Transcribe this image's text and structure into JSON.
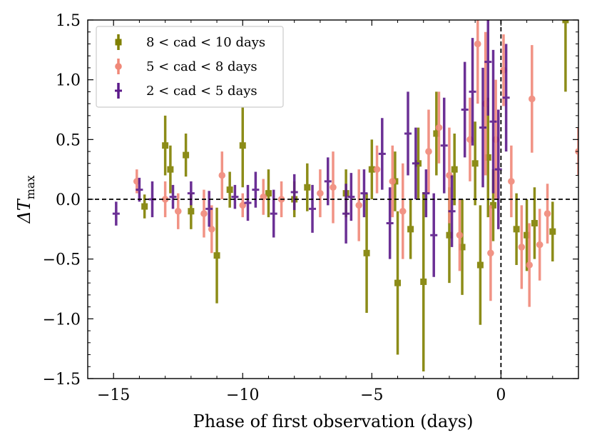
{
  "chart_data": {
    "type": "scatter",
    "xlabel": "Phase of first observation (days)",
    "ylabel": "ΔT",
    "ylabel_sub": "max",
    "xlim": [
      -16,
      3
    ],
    "ylim": [
      -1.5,
      1.5
    ],
    "x_ticks": [
      -15,
      -10,
      -5,
      0
    ],
    "x_tick_labels": [
      "−15",
      "−10",
      "−5",
      "0"
    ],
    "y_ticks": [
      -1.5,
      -1.0,
      -0.5,
      0.0,
      0.5,
      1.0,
      1.5
    ],
    "y_tick_labels": [
      "−1.5",
      "−1.0",
      "−0.5",
      "0.0",
      "0.5",
      "1.0",
      "1.5"
    ],
    "reference_lines": {
      "horizontal_y": 0,
      "vertical_x": 0,
      "style": "dashed"
    },
    "legend": {
      "placement": "top-left"
    },
    "series": [
      {
        "name": "8 < cad < 10 days",
        "marker": "square",
        "color": "#808000",
        "points": [
          [
            -13.0,
            0.45,
            0.25
          ],
          [
            -12.8,
            0.25,
            0.2
          ],
          [
            -12.2,
            0.37,
            0.18
          ],
          [
            -11.0,
            -0.47,
            0.4
          ],
          [
            -10.0,
            0.45,
            0.35
          ],
          [
            -10.5,
            0.08,
            0.15
          ],
          [
            -13.8,
            -0.06,
            0.1
          ],
          [
            -9.0,
            0.05,
            0.2
          ],
          [
            -7.5,
            0.1,
            0.2
          ],
          [
            -5.2,
            -0.45,
            0.5
          ],
          [
            -5.0,
            0.25,
            0.25
          ],
          [
            -4.1,
            0.15,
            0.25
          ],
          [
            -4.0,
            -0.7,
            0.6
          ],
          [
            -3.5,
            -0.25,
            0.25
          ],
          [
            -3.2,
            0.3,
            0.3
          ],
          [
            -3.0,
            -0.69,
            0.75
          ],
          [
            -2.5,
            0.55,
            0.35
          ],
          [
            -2.0,
            -0.3,
            0.4
          ],
          [
            -1.8,
            0.25,
            0.3
          ],
          [
            -1.5,
            -0.4,
            0.4
          ],
          [
            -1.0,
            0.3,
            0.35
          ],
          [
            -0.8,
            -0.55,
            0.5
          ],
          [
            -0.5,
            0.35,
            0.5
          ],
          [
            -0.3,
            -0.05,
            0.3
          ],
          [
            0.6,
            -0.25,
            0.3
          ],
          [
            1.0,
            -0.3,
            0.3
          ],
          [
            1.3,
            -0.2,
            0.3
          ],
          [
            2.0,
            -0.27,
            0.25
          ],
          [
            2.5,
            1.5,
            0.6
          ],
          [
            -8.0,
            0.0,
            0.15
          ],
          [
            -6.0,
            0.05,
            0.2
          ],
          [
            -12.0,
            -0.1,
            0.15
          ]
        ]
      },
      {
        "name": "5 < cad < 8 days",
        "marker": "circle",
        "color": "#f08878",
        "points": [
          [
            -14.1,
            0.15,
            0.1
          ],
          [
            -12.5,
            -0.1,
            0.15
          ],
          [
            -11.5,
            -0.12,
            0.2
          ],
          [
            -11.2,
            -0.25,
            0.2
          ],
          [
            -10.8,
            0.2,
            0.2
          ],
          [
            -9.2,
            0.02,
            0.15
          ],
          [
            -7.0,
            0.05,
            0.2
          ],
          [
            -6.5,
            0.1,
            0.3
          ],
          [
            -5.5,
            -0.05,
            0.3
          ],
          [
            -4.8,
            0.25,
            0.2
          ],
          [
            -4.2,
            0.15,
            0.3
          ],
          [
            -3.8,
            -0.1,
            0.4
          ],
          [
            -2.8,
            0.4,
            0.35
          ],
          [
            -2.4,
            0.6,
            0.3
          ],
          [
            -2.0,
            0.2,
            0.4
          ],
          [
            -1.6,
            -0.3,
            0.3
          ],
          [
            -1.2,
            0.5,
            0.35
          ],
          [
            -0.9,
            1.3,
            0.5
          ],
          [
            -0.6,
            0.8,
            0.6
          ],
          [
            -0.4,
            -0.45,
            0.4
          ],
          [
            -0.2,
            0.5,
            0.5
          ],
          [
            0.1,
            1.08,
            0.3
          ],
          [
            0.4,
            0.15,
            0.3
          ],
          [
            0.8,
            -0.4,
            0.35
          ],
          [
            1.1,
            -0.55,
            0.35
          ],
          [
            1.2,
            0.84,
            0.45
          ],
          [
            1.5,
            -0.38,
            0.3
          ],
          [
            1.8,
            -0.12,
            0.25
          ],
          [
            3.0,
            0.4,
            0.2
          ],
          [
            -8.5,
            0.0,
            0.15
          ],
          [
            -13.0,
            0.0,
            0.15
          ],
          [
            -10.0,
            -0.05,
            0.1
          ]
        ]
      },
      {
        "name": "2 < cad < 5 days",
        "marker": "plus",
        "color": "#5c1a8a",
        "points": [
          [
            -14.9,
            -0.12,
            0.1
          ],
          [
            -14.0,
            0.08,
            0.1
          ],
          [
            -13.5,
            0.0,
            0.15
          ],
          [
            -12.0,
            0.05,
            0.1
          ],
          [
            -11.3,
            -0.08,
            0.15
          ],
          [
            -10.3,
            0.02,
            0.1
          ],
          [
            -9.5,
            0.08,
            0.15
          ],
          [
            -8.8,
            -0.12,
            0.2
          ],
          [
            -8.0,
            0.06,
            0.15
          ],
          [
            -7.3,
            -0.08,
            0.2
          ],
          [
            -6.7,
            0.15,
            0.2
          ],
          [
            -6.0,
            -0.12,
            0.25
          ],
          [
            -5.3,
            0.05,
            0.2
          ],
          [
            -4.6,
            0.38,
            0.3
          ],
          [
            -4.3,
            -0.2,
            0.3
          ],
          [
            -3.6,
            0.55,
            0.35
          ],
          [
            -3.3,
            0.3,
            0.3
          ],
          [
            -2.6,
            -0.3,
            0.35
          ],
          [
            -2.2,
            0.45,
            0.4
          ],
          [
            -1.9,
            -0.1,
            0.3
          ],
          [
            -1.4,
            0.75,
            0.4
          ],
          [
            -1.1,
            0.9,
            0.45
          ],
          [
            -0.7,
            0.6,
            0.5
          ],
          [
            -0.5,
            1.15,
            0.45
          ],
          [
            -0.3,
            0.65,
            0.6
          ],
          [
            -0.1,
            0.25,
            0.5
          ],
          [
            0.2,
            0.85,
            0.45
          ],
          [
            -2.9,
            0.05,
            0.2
          ],
          [
            -5.8,
            0.02,
            0.2
          ],
          [
            -9.8,
            -0.03,
            0.15
          ],
          [
            -12.7,
            0.02,
            0.1
          ]
        ]
      }
    ]
  }
}
